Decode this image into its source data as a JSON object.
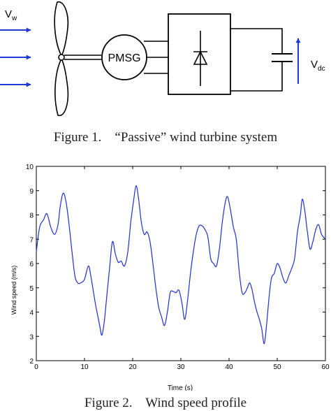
{
  "figure1": {
    "wind_label": "V",
    "wind_subscript": "w",
    "generator_label": "PMSG",
    "voltage_label": "V",
    "voltage_subscript": "dc",
    "caption": "Figure 1.    “Passive” wind turbine system"
  },
  "figure2": {
    "caption": "Figure 2.    Wind speed profile"
  },
  "colors": {
    "arrow": "#1f3bd6",
    "series": "#1f2fd0",
    "line": "#000000"
  },
  "chart_data": {
    "type": "line",
    "title": "",
    "xlabel": "Time (s)",
    "ylabel": "Wind speed (m/s)",
    "xlim": [
      0,
      60
    ],
    "ylim": [
      2,
      10
    ],
    "xticks": [
      0,
      10,
      20,
      30,
      40,
      50,
      60
    ],
    "yticks": [
      2,
      3,
      4,
      5,
      6,
      7,
      8,
      9,
      10
    ],
    "grid": false,
    "legend": "none",
    "series": [
      {
        "name": "",
        "x": [
          0,
          0.7,
          1.5,
          2.2,
          3.0,
          3.8,
          4.5,
          5.0,
          5.6,
          6.2,
          6.8,
          7.4,
          8.0,
          8.6,
          9.2,
          10.0,
          10.8,
          11.3,
          11.8,
          12.3,
          12.8,
          13.2,
          13.6,
          14.1,
          14.6,
          15.2,
          15.8,
          16.4,
          17.0,
          17.6,
          18.3,
          19.0,
          19.6,
          20.2,
          20.7,
          21.2,
          21.8,
          22.4,
          23.0,
          23.6,
          24.2,
          24.8,
          25.4,
          26.0,
          26.6,
          27.2,
          27.8,
          28.4,
          29.0,
          29.6,
          30.2,
          30.8,
          31.4,
          32.0,
          32.6,
          33.2,
          33.8,
          34.4,
          35.0,
          35.6,
          36.2,
          36.8,
          37.4,
          38.0,
          38.6,
          39.2,
          39.7,
          40.3,
          40.9,
          41.5,
          42.1,
          42.7,
          43.3,
          43.8,
          44.3,
          44.8,
          45.3,
          45.8,
          46.3,
          46.8,
          47.3,
          47.8,
          48.3,
          48.8,
          49.4,
          50.0,
          50.6,
          51.2,
          51.8,
          52.4,
          53.0,
          53.6,
          54.2,
          54.8,
          55.2,
          55.7,
          56.2,
          56.8,
          57.4,
          58.0,
          58.6,
          59.2,
          60.0
        ],
        "values": [
          6.5,
          7.5,
          7.8,
          8.05,
          7.5,
          7.2,
          7.6,
          8.4,
          8.9,
          8.5,
          7.6,
          6.5,
          5.5,
          5.2,
          5.2,
          5.35,
          5.9,
          5.5,
          4.9,
          4.3,
          3.8,
          3.4,
          3.05,
          3.6,
          4.6,
          5.8,
          6.9,
          6.4,
          6.05,
          6.1,
          5.9,
          6.5,
          7.7,
          8.6,
          9.2,
          8.7,
          7.7,
          7.2,
          7.3,
          6.9,
          6.0,
          5.0,
          4.2,
          3.8,
          3.45,
          4.0,
          4.8,
          4.85,
          4.8,
          4.9,
          4.4,
          3.7,
          4.5,
          5.6,
          6.5,
          7.2,
          7.55,
          7.55,
          7.4,
          7.1,
          6.2,
          6.0,
          5.9,
          6.6,
          7.7,
          8.5,
          8.75,
          8.2,
          7.5,
          7.0,
          5.7,
          4.8,
          4.8,
          5.0,
          5.2,
          4.9,
          4.4,
          4.0,
          3.7,
          3.3,
          2.7,
          3.5,
          4.6,
          5.4,
          5.6,
          6.0,
          5.8,
          5.4,
          5.2,
          5.5,
          5.8,
          6.2,
          7.3,
          8.0,
          8.65,
          8.2,
          7.4,
          6.6,
          6.9,
          7.4,
          7.6,
          7.2,
          7.0
        ]
      }
    ]
  }
}
